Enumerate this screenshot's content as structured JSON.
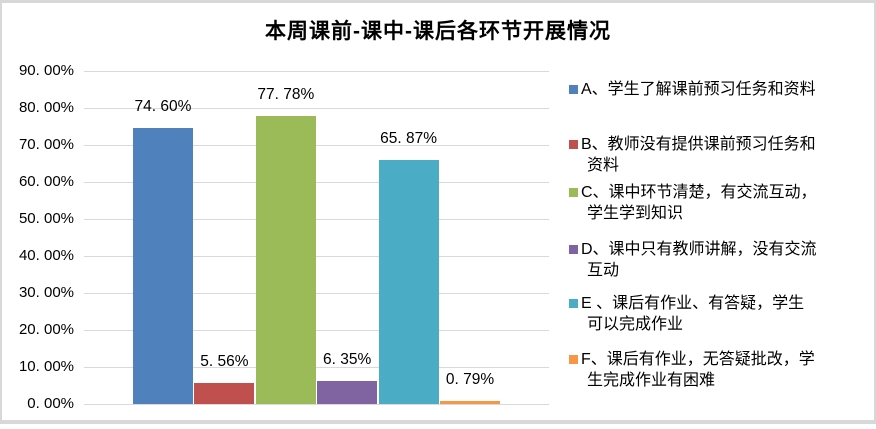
{
  "chart_data": {
    "type": "bar",
    "title": "本周课前-课中-课后各环节开展情况",
    "legend_position": "right",
    "grid": true,
    "y_axis": {
      "min": 0,
      "max": 90,
      "step": 10,
      "tick_labels_top_to_bottom": [
        "90. 00%",
        "80. 00%",
        "70. 00%",
        "60. 00%",
        "50. 00%",
        "40. 00%",
        "30. 00%",
        "20. 00%",
        "10. 00%",
        "0. 00%"
      ]
    },
    "categories": [
      "A",
      "B",
      "C",
      "D",
      "E",
      "F"
    ],
    "series": [
      {
        "name": "A、学生了解课前预习任务和资料",
        "value": 74.6,
        "data_label": "74. 60%",
        "color": "#4F81BD",
        "legend_lines": [
          "A、学生了解课前预习任务和资料"
        ]
      },
      {
        "name": "B、教师没有提供课前预习任务和资料",
        "value": 5.56,
        "data_label": "5. 56%",
        "color": "#C0504D",
        "legend_lines": [
          "B、教师没有提供课前预习任务和",
          "资料"
        ]
      },
      {
        "name": "C、课中环节清楚，有交流互动，学生学到知识",
        "value": 77.78,
        "data_label": "77. 78%",
        "color": "#9BBB59",
        "legend_lines": [
          "C、课中环节清楚，有交流互动，",
          "学生学到知识"
        ]
      },
      {
        "name": "D、课中只有教师讲解，没有交流互动",
        "value": 6.35,
        "data_label": "6. 35%",
        "color": "#8064A2",
        "legend_lines": [
          "D、课中只有教师讲解，没有交流",
          "互动"
        ]
      },
      {
        "name": "E 、课后有作业、有答疑，学生可以完成作业",
        "value": 65.87,
        "data_label": "65. 87%",
        "color": "#4BACC6",
        "legend_lines": [
          "E 、课后有作业、有答疑，学生",
          "可以完成作业"
        ]
      },
      {
        "name": "F、课后有作业，无答疑批改，学生完成作业有困难",
        "value": 0.79,
        "data_label": "0. 79%",
        "color": "#F79646",
        "legend_lines": [
          "F、课后有作业，无答疑批改，学",
          "生完成作业有困难"
        ]
      }
    ]
  }
}
